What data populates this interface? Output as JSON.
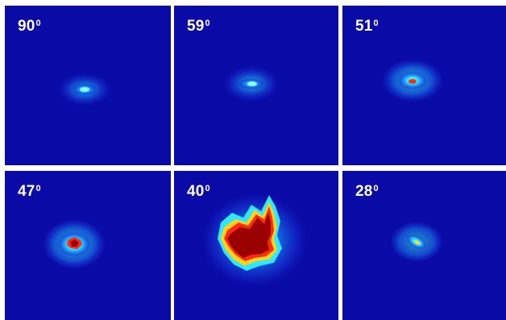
{
  "panels": [
    {
      "angle": "90",
      "degree_mark": "0"
    },
    {
      "angle": "59",
      "degree_mark": "0"
    },
    {
      "angle": "51",
      "degree_mark": "0"
    },
    {
      "angle": "47",
      "degree_mark": "0"
    },
    {
      "angle": "40",
      "degree_mark": "0"
    },
    {
      "angle": "28",
      "degree_mark": "0"
    }
  ],
  "colors": {
    "background_blue": "#0a0aa6",
    "halo_blue": "#1f5cff",
    "cyan": "#27e0ff",
    "yellow": "#ffd21a",
    "red": "#ff2a12",
    "dark_red": "#9a0000"
  }
}
